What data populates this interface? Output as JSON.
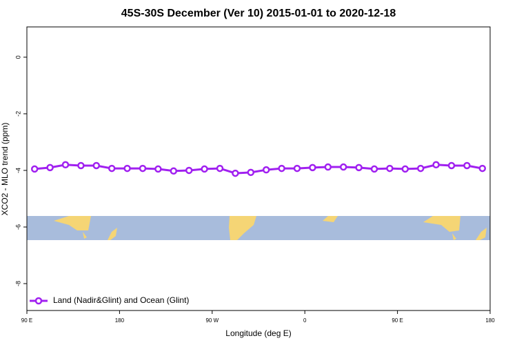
{
  "chart_data": {
    "type": "line",
    "title": "45S-30S December (Ver 10)   2015-01-01 to 2020-12-18",
    "x_label": "Longitude (deg E)",
    "y_label": "XCO2 - MLO trend (ppm)",
    "x": [
      97.5,
      112.5,
      127.5,
      142.5,
      157.5,
      172.5,
      187.5,
      202.5,
      217.5,
      232.5,
      247.5,
      262.5,
      277.5,
      292.5,
      307.5,
      322.5,
      337.5,
      352.5,
      367.5,
      382.5,
      397.5,
      412.5,
      427.5,
      442.5,
      457.5,
      472.5,
      487.5,
      502.5,
      517.5,
      532.5
    ],
    "series": [
      {
        "name": "Land (Nadir&Glint) and Ocean (Glint)",
        "color": "#a020f0",
        "values": [
          -3.95,
          -3.9,
          -3.8,
          -3.83,
          -3.83,
          -3.93,
          -3.93,
          -3.93,
          -3.95,
          -4.02,
          -4.0,
          -3.95,
          -3.93,
          -4.1,
          -4.07,
          -3.98,
          -3.93,
          -3.93,
          -3.9,
          -3.88,
          -3.88,
          -3.9,
          -3.95,
          -3.93,
          -3.95,
          -3.93,
          -3.8,
          -3.83,
          -3.83,
          -3.93
        ]
      }
    ],
    "xlim": [
      90,
      540
    ],
    "xticks": [
      {
        "value": 90,
        "label": "90 E"
      },
      {
        "value": 180,
        "label": "180"
      },
      {
        "value": 270,
        "label": "90 W"
      },
      {
        "value": 360,
        "label": "0"
      },
      {
        "value": 450,
        "label": "90 E"
      },
      {
        "value": 540,
        "label": "180"
      }
    ],
    "ylim": [
      -8.95,
      1.07
    ],
    "yticks": [
      0,
      -2,
      -4,
      -6,
      -8
    ],
    "legend": "bottom-left"
  }
}
